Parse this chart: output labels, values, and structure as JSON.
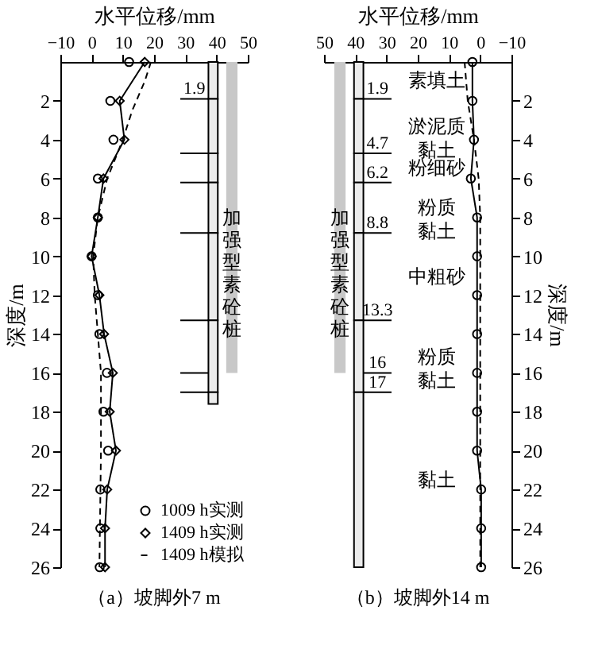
{
  "chart_data": [
    {
      "type": "line",
      "title": "（a）坡脚外7 m",
      "xlabel": "水平位移/mm",
      "ylabel": "深度/m",
      "xlim": [
        -10,
        50
      ],
      "xticks": [
        -10,
        0,
        10,
        20,
        30,
        40,
        50
      ],
      "ylim": [
        26,
        0
      ],
      "yticks": [
        2,
        4,
        6,
        8,
        10,
        12,
        14,
        16,
        18,
        20,
        22,
        24,
        26
      ],
      "legend": "bottom right",
      "grid": false,
      "series": [
        {
          "name": "1009 h实测",
          "type": "scatter",
          "marker": "circle",
          "color": "#000000",
          "x": [
            12,
            6,
            7,
            2,
            2,
            0,
            2,
            2.5,
            4.9,
            3.8,
            5.3,
            2.8,
            2.8,
            2.6
          ],
          "values": [
            0,
            2,
            4,
            6,
            8,
            10,
            12,
            14,
            16,
            18,
            20,
            22,
            24,
            26
          ]
        },
        {
          "name": "1409 h实测",
          "type": "line",
          "marker": "diamond",
          "line_style": "solid",
          "color": "#000000",
          "x": [
            17,
            9,
            10.5,
            3.8,
            2,
            0,
            2.5,
            4,
            6.8,
            5.8,
            7.8,
            5,
            4.3,
            4.3
          ],
          "values": [
            0,
            2,
            4,
            6,
            8,
            10,
            12,
            14,
            16,
            18,
            20,
            22,
            24,
            26
          ]
        },
        {
          "name": "1409 h模拟",
          "type": "line",
          "marker": "none",
          "line_style": "dashed",
          "color": "#000000",
          "x": [
            19,
            17,
            13,
            10,
            5,
            2,
            0.5,
            1,
            2,
            3,
            3,
            2.5
          ],
          "values": [
            0,
            1,
            2.5,
            4,
            6,
            8,
            10,
            12,
            14,
            16,
            20,
            26
          ]
        }
      ],
      "ref_lines": [
        {
          "axis": "y",
          "value": 1.9,
          "label": "1.9"
        },
        {
          "axis": "y",
          "value": 4.7
        },
        {
          "axis": "y",
          "value": 6.2
        },
        {
          "axis": "y",
          "value": 8.8
        },
        {
          "axis": "y",
          "value": 13.3
        },
        {
          "axis": "y",
          "value": 16
        },
        {
          "axis": "y",
          "value": 17
        }
      ],
      "bands": [
        {
          "axis": "y",
          "from": 0,
          "to": 1.9
        },
        {
          "axis": "y",
          "from": 1.9,
          "to": 4.7
        },
        {
          "axis": "y",
          "from": 4.7,
          "to": 6.2
        },
        {
          "axis": "y",
          "from": 6.2,
          "to": 8.8
        },
        {
          "axis": "y",
          "from": 8.8,
          "to": 13.3
        },
        {
          "axis": "y",
          "from": 13.3,
          "to": 17
        },
        {
          "axis": "y",
          "from": 17,
          "to": 17.6
        },
        {
          "axis": "y",
          "from": 0,
          "to": 16,
          "label": "加强型素砼桩",
          "color": "#c8c8c8"
        }
      ]
    },
    {
      "type": "line",
      "title": "（b）坡脚外14 m",
      "xlabel": "水平位移/mm",
      "ylabel": "深度/m",
      "xlim": [
        50,
        -10
      ],
      "xticks": [
        50,
        40,
        30,
        20,
        10,
        0,
        -10
      ],
      "ylim": [
        26,
        0
      ],
      "yticks": [
        2,
        4,
        6,
        8,
        10,
        12,
        14,
        16,
        18,
        20,
        22,
        24,
        26
      ],
      "legend": false,
      "grid": false,
      "series": [
        {
          "type": "scatter",
          "marker": "circle",
          "color": "#000000",
          "x": [
            2.5,
            2.5,
            2,
            3,
            1,
            1,
            1,
            1,
            1,
            1,
            1,
            -0.3,
            -0.3,
            -0.3
          ],
          "values": [
            0,
            2,
            4,
            6,
            8,
            10,
            12,
            14,
            16,
            18,
            20,
            22,
            24,
            26
          ]
        },
        {
          "type": "line",
          "marker": "none",
          "line_style": "solid",
          "color": "#000000",
          "x": [
            2.5,
            2.5,
            2,
            3,
            1,
            1,
            1,
            1,
            1,
            1,
            1,
            -0.3,
            -0.3,
            -0.3
          ],
          "values": [
            0,
            2,
            4,
            6,
            8,
            10,
            12,
            14,
            16,
            18,
            20,
            22,
            24,
            26
          ]
        },
        {
          "type": "line",
          "marker": "none",
          "line_style": "dashed",
          "color": "#000000",
          "x": [
            5,
            4,
            2,
            0.5,
            0,
            0,
            0,
            0,
            0
          ],
          "values": [
            0,
            2,
            4,
            6,
            8,
            12,
            16,
            20,
            26
          ]
        }
      ],
      "ref_lines": [
        {
          "axis": "y",
          "value": 1.9,
          "label": "1.9"
        },
        {
          "axis": "y",
          "value": 4.7,
          "label": "4.7"
        },
        {
          "axis": "y",
          "value": 6.2,
          "label": "6.2"
        },
        {
          "axis": "y",
          "value": 8.8,
          "label": "8.8"
        },
        {
          "axis": "y",
          "value": 13.3,
          "label": "13.3"
        },
        {
          "axis": "y",
          "value": 16,
          "label": "16"
        },
        {
          "axis": "y",
          "value": 17,
          "label": "17"
        }
      ],
      "bands": [
        {
          "axis": "y",
          "from": 0,
          "to": 1.9,
          "label": "素填土"
        },
        {
          "axis": "y",
          "from": 1.9,
          "to": 4.7,
          "label": "淤泥质黏土"
        },
        {
          "axis": "y",
          "from": 4.7,
          "to": 6.2,
          "label": "粉细砂"
        },
        {
          "axis": "y",
          "from": 6.2,
          "to": 8.8,
          "label": "粉质黏土"
        },
        {
          "axis": "y",
          "from": 8.8,
          "to": 13.3,
          "label": "中粗砂"
        },
        {
          "axis": "y",
          "from": 13.3,
          "to": 17,
          "label": "粉质黏土"
        },
        {
          "axis": "y",
          "from": 17,
          "to": 26,
          "label": "黏土"
        },
        {
          "axis": "y",
          "from": 0,
          "to": 16,
          "label": "加强型素砼桩",
          "color": "#c8c8c8"
        }
      ]
    }
  ]
}
